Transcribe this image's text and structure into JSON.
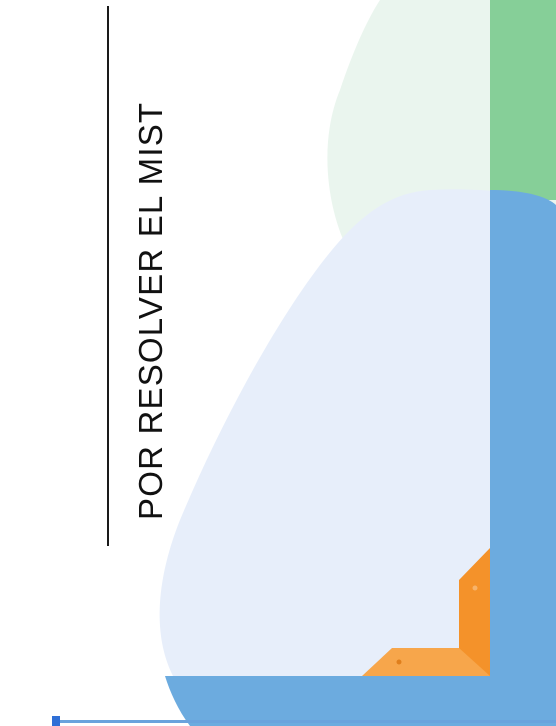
{
  "headline": {
    "text": "POR RESOLVER EL MIST"
  },
  "colors": {
    "rule": "#1a1a1a",
    "text": "#111111",
    "pale_green": "#eaf5ee",
    "green": "#86cf98",
    "pale_blue": "#e7eefa",
    "blue": "#6cabdf",
    "orange": "#f4922a",
    "orange_light": "#f7a64b",
    "accent_blue": "#2f6fd6"
  }
}
